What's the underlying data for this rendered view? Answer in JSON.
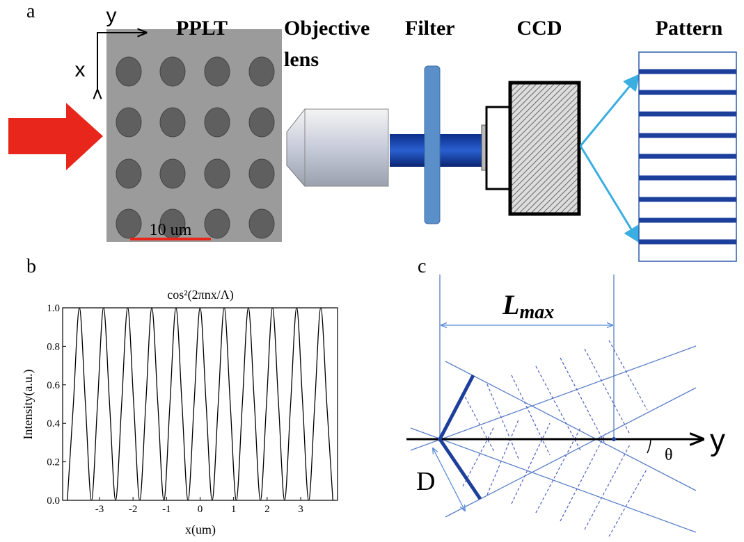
{
  "panel_a": {
    "label": "a",
    "axis_x": "x",
    "axis_y": "y",
    "sample": "PPLT",
    "scale_bar": "10 um",
    "objective": "Objective",
    "objective_line2": "lens",
    "filter": "Filter",
    "detector": "CCD",
    "pattern": "Pattern"
  },
  "chart_data": {
    "type": "line",
    "panel_label": "b",
    "title": "cos²(2πnx/Λ)",
    "x_label": "x(um)",
    "y_label": "Intensity(a.u.)",
    "x": [
      -3.96,
      -3.78,
      -3.6,
      -3.42,
      -3.24,
      -3.06,
      -2.88,
      -2.7,
      -2.52,
      -2.34,
      -2.16,
      -1.98,
      -1.8,
      -1.62,
      -1.44,
      -1.26,
      -1.08,
      -0.9,
      -0.72,
      -0.54,
      -0.36,
      -0.18,
      0,
      0.18,
      0.36,
      0.54,
      0.72,
      0.9,
      1.08,
      1.26,
      1.44,
      1.62,
      1.8,
      1.98,
      2.16,
      2.34,
      2.52,
      2.7,
      2.88,
      3.06,
      3.24,
      3.42,
      3.6,
      3.78,
      3.96
    ],
    "series": [
      {
        "color": "#000000",
        "values": [
          0,
          0.5,
          1,
          0.5,
          0,
          0.5,
          1,
          0.5,
          0,
          0.5,
          1,
          0.5,
          0,
          0.5,
          1,
          0.5,
          0,
          0.5,
          1,
          0.5,
          0,
          0.5,
          1,
          0.5,
          0,
          0.5,
          1,
          0.5,
          0,
          0.5,
          1,
          0.5,
          0,
          0.5,
          1,
          0.5,
          0,
          0.5,
          1,
          0.5,
          0,
          0.5,
          1,
          0.5,
          0
        ]
      }
    ],
    "xlim": [
      -4.1,
      4.1
    ],
    "xticks": [
      -3,
      -2,
      -1,
      0,
      1,
      2,
      3
    ],
    "ylim": [
      0,
      1
    ],
    "yticks": [
      {
        "value": 0,
        "label": "0.0"
      },
      0.2,
      0.4,
      0.6,
      0.8,
      {
        "value": 1,
        "label": "1.0"
      }
    ]
  },
  "panel_c": {
    "label": "c",
    "length": "L",
    "length_sub": "max",
    "axis": "y",
    "angle": "θ",
    "width": "D"
  }
}
